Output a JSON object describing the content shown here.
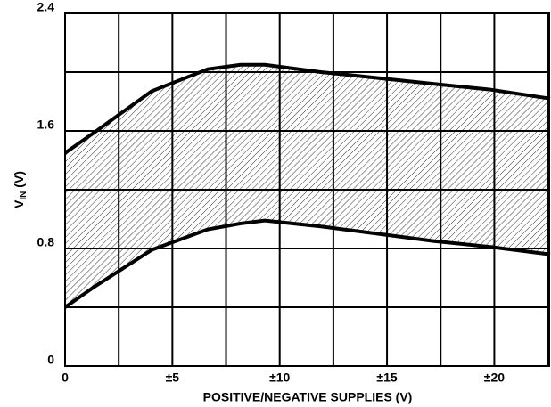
{
  "chart_data": {
    "type": "band",
    "xlabel": "POSITIVE/NEGATIVE SUPPLIES (V)",
    "ylabel": [
      "V",
      "IN",
      " (V)"
    ],
    "x": [
      0,
      1.37,
      4.03,
      6.65,
      8.18,
      9.31,
      11.92,
      14.58,
      17.2,
      19.86,
      22.6
    ],
    "upper": [
      1.45,
      1.59,
      1.87,
      2.02,
      2.05,
      2.05,
      2.0,
      1.96,
      1.92,
      1.88,
      1.82
    ],
    "lower": [
      0.4,
      0.54,
      0.79,
      0.93,
      0.97,
      0.99,
      0.95,
      0.9,
      0.85,
      0.81,
      0.76
    ],
    "color": "#000000",
    "xlim": [
      0,
      22.6
    ],
    "ylim": [
      0,
      2.4
    ],
    "xticks": [
      {
        "value": 0,
        "label": "0"
      },
      {
        "value": 5,
        "label": "±5"
      },
      {
        "value": 10,
        "label": "±10"
      },
      {
        "value": 15,
        "label": "±15"
      },
      {
        "value": 20,
        "label": "±20"
      }
    ],
    "xminor": [
      2.5,
      7.5,
      12.5,
      17.5,
      22.5
    ],
    "yticks": [
      0,
      0.8,
      1.6,
      2.4
    ],
    "yminor": [
      0.4,
      1.2,
      2.0
    ],
    "grid": true
  }
}
